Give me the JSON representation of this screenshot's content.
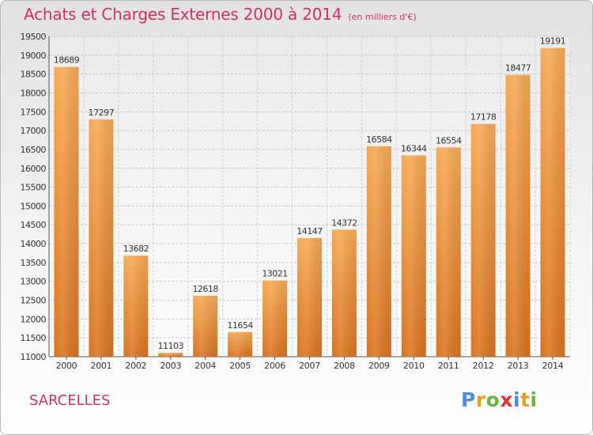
{
  "chart_data": {
    "type": "bar",
    "title": "Achats et Charges Externes 2000 à 2014",
    "subtitle": "(en milliers d'€)",
    "categories": [
      "2000",
      "2001",
      "2002",
      "2003",
      "2004",
      "2005",
      "2006",
      "2007",
      "2008",
      "2009",
      "2010",
      "2011",
      "2012",
      "2013",
      "2014"
    ],
    "values": [
      18689,
      17297,
      13682,
      11103,
      12618,
      11654,
      13021,
      14147,
      14372,
      16584,
      16344,
      16554,
      17178,
      18477,
      19191
    ],
    "ylim": [
      11000,
      19500
    ],
    "yticks": [
      11000,
      11500,
      12000,
      12500,
      13000,
      13500,
      14000,
      14500,
      15000,
      15500,
      16000,
      16500,
      17000,
      17500,
      18000,
      18500,
      19000,
      19500
    ],
    "grid": true,
    "legend": "none",
    "bar_color": "#f0963a"
  },
  "footer": {
    "city": "SARCELLES",
    "logo": "Proxiti",
    "logo_colors": [
      "#4a90d9",
      "#e8a020",
      "#6cb33f",
      "#e03030",
      "#4a90d9",
      "#e8a020",
      "#6cb33f"
    ]
  }
}
